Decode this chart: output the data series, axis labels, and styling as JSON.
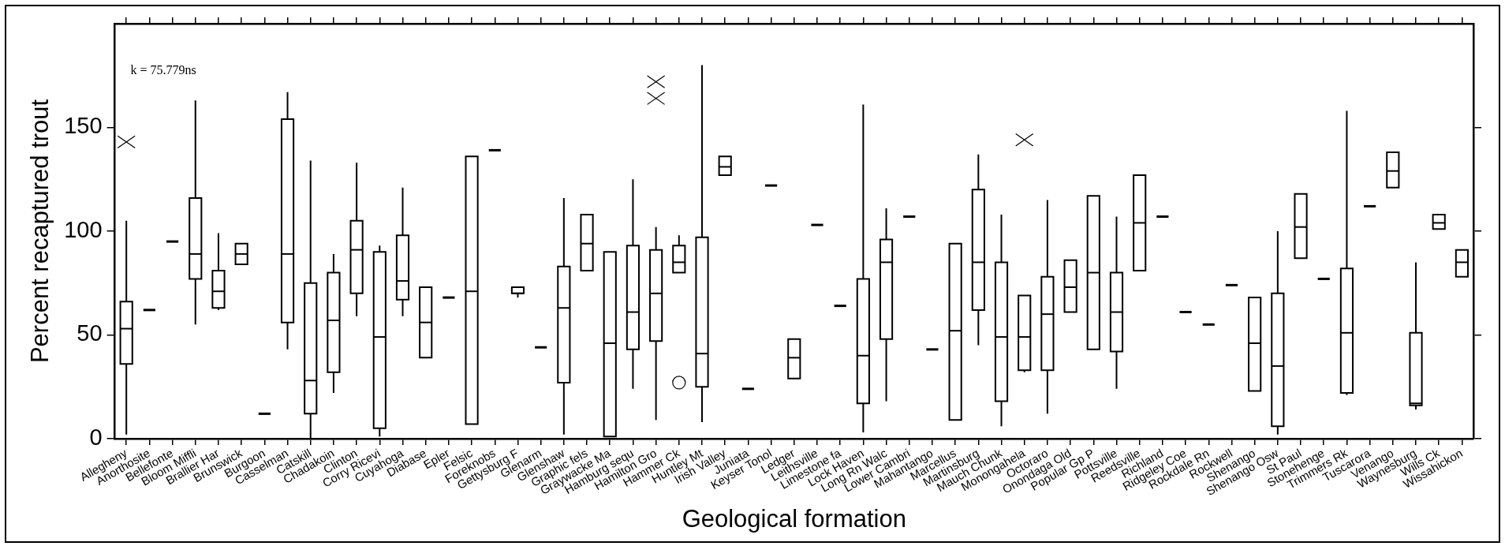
{
  "chart_data": {
    "type": "box",
    "xlabel": "Geological formation",
    "ylabel": "Percent recaptured trout",
    "annotations": [
      "k = 75.779ns"
    ],
    "color": "#000000",
    "ylim": [
      0,
      200
    ],
    "yticks": [
      0,
      50,
      100,
      150
    ],
    "grid": false,
    "legend": false,
    "categories": [
      "Allegheny",
      "Anorthosite",
      "Bellefonte",
      "Bloom Miffli",
      "Brallier Har",
      "Brunswick",
      "Burgoon",
      "Casselman",
      "Catskill",
      "Chadakoin",
      "Clinton",
      "Corry Ricevi",
      "Cuyahoga",
      "Diabase",
      "Epler",
      "Felsic",
      "Foreknobs",
      "Gettysburg F",
      "Glenarm",
      "Glenshaw",
      "Graphic fels",
      "Graywacke Ma",
      "Hamburg sequ",
      "Hamilton Gro",
      "Hammer Ck",
      "Huntley Mt",
      "Irish Valley",
      "Juniata",
      "Keyser Tonol",
      "Ledger",
      "Leithsville",
      "Limestone fa",
      "Lock Haven",
      "Long Rn Walc",
      "Lower Cambri",
      "Mahantango",
      "Marcellus",
      "Martinsburg",
      "Mauch Chunk",
      "Monongahela",
      "Octoraro",
      "Onondaga Old",
      "Popular Gp P",
      "Pottsville",
      "Reedsville",
      "Richland",
      "Ridgeley Coe",
      "Rockdale Rn",
      "Rockwell",
      "Shenango",
      "Shenango Osw",
      "St Paul",
      "Stonehenge",
      "Trimmers Rk",
      "Tuscarora",
      "Venango",
      "Waynesburg",
      "Wills Ck",
      "Wissahickon"
    ],
    "boxes": [
      {
        "low": 2,
        "q1": 36,
        "median": 53,
        "q3": 66,
        "high": 105,
        "outliers": [
          143
        ]
      },
      {
        "low": 62,
        "q1": 62,
        "median": 62,
        "q3": 62,
        "high": 62
      },
      {
        "low": 95,
        "q1": 95,
        "median": 95,
        "q3": 95,
        "high": 95
      },
      {
        "low": 55,
        "q1": 77,
        "median": 89,
        "q3": 116,
        "high": 163
      },
      {
        "low": 62,
        "q1": 63,
        "median": 71,
        "q3": 81,
        "high": 99
      },
      {
        "low": 84,
        "q1": 84,
        "median": 89,
        "q3": 94,
        "high": 94
      },
      {
        "low": 12,
        "q1": 12,
        "median": 12,
        "q3": 12,
        "high": 12
      },
      {
        "low": 43,
        "q1": 56,
        "median": 89,
        "q3": 154,
        "high": 167
      },
      {
        "low": 0,
        "q1": 12,
        "median": 28,
        "q3": 75,
        "high": 134
      },
      {
        "low": 22,
        "q1": 32,
        "median": 57,
        "q3": 80,
        "high": 89
      },
      {
        "low": 59,
        "q1": 70,
        "median": 91,
        "q3": 105,
        "high": 133
      },
      {
        "low": 1,
        "q1": 5,
        "median": 49,
        "q3": 90,
        "high": 93
      },
      {
        "low": 59,
        "q1": 67,
        "median": 76,
        "q3": 98,
        "high": 121
      },
      {
        "low": 39,
        "q1": 39,
        "median": 56,
        "q3": 73,
        "high": 73
      },
      {
        "low": 68,
        "q1": 68,
        "median": 68,
        "q3": 68,
        "high": 68
      },
      {
        "low": 7,
        "q1": 7,
        "median": 71,
        "q3": 136,
        "high": 136
      },
      {
        "low": 139,
        "q1": 139,
        "median": 139,
        "q3": 139,
        "high": 139
      },
      {
        "low": 68,
        "q1": 70,
        "median": 70,
        "q3": 73,
        "high": 73
      },
      {
        "low": 44,
        "q1": 44,
        "median": 44,
        "q3": 44,
        "high": 44
      },
      {
        "low": 2,
        "q1": 27,
        "median": 63,
        "q3": 83,
        "high": 116
      },
      {
        "low": 81,
        "q1": 81,
        "median": 94,
        "q3": 108,
        "high": 108
      },
      {
        "low": 1,
        "q1": 1,
        "median": 46,
        "q3": 90,
        "high": 90
      },
      {
        "low": 24,
        "q1": 43,
        "median": 61,
        "q3": 93,
        "high": 125
      },
      {
        "low": 9,
        "q1": 47,
        "median": 70,
        "q3": 91,
        "high": 102,
        "outliers": [
          164,
          172
        ]
      },
      {
        "low": 80,
        "q1": 80,
        "median": 85,
        "q3": 93,
        "high": 98
      },
      {
        "low": 8,
        "q1": 25,
        "median": 41,
        "q3": 97,
        "high": 180
      },
      {
        "low": 127,
        "q1": 127,
        "median": 131,
        "q3": 136,
        "high": 136
      },
      {
        "low": 24,
        "q1": 24,
        "median": 24,
        "q3": 24,
        "high": 24
      },
      {
        "low": 122,
        "q1": 122,
        "median": 122,
        "q3": 122,
        "high": 122
      },
      {
        "low": 29,
        "q1": 29,
        "median": 39,
        "q3": 48,
        "high": 48
      },
      {
        "low": 103,
        "q1": 103,
        "median": 103,
        "q3": 103,
        "high": 103
      },
      {
        "low": 64,
        "q1": 64,
        "median": 64,
        "q3": 64,
        "high": 64
      },
      {
        "low": 3,
        "q1": 17,
        "median": 40,
        "q3": 77,
        "high": 161
      },
      {
        "low": 18,
        "q1": 48,
        "median": 85,
        "q3": 96,
        "high": 111
      },
      {
        "low": 107,
        "q1": 107,
        "median": 107,
        "q3": 107,
        "high": 107
      },
      {
        "low": 43,
        "q1": 43,
        "median": 43,
        "q3": 43,
        "high": 43
      },
      {
        "low": 9,
        "q1": 9,
        "median": 52,
        "q3": 94,
        "high": 94
      },
      {
        "low": 45,
        "q1": 62,
        "median": 85,
        "q3": 120,
        "high": 137
      },
      {
        "low": 6,
        "q1": 18,
        "median": 49,
        "q3": 85,
        "high": 108
      },
      {
        "low": 32,
        "q1": 33,
        "median": 49,
        "q3": 69,
        "high": 69,
        "outliers": [
          144
        ]
      },
      {
        "low": 12,
        "q1": 33,
        "median": 60,
        "q3": 78,
        "high": 115
      },
      {
        "low": 61,
        "q1": 61,
        "median": 73,
        "q3": 86,
        "high": 86
      },
      {
        "low": 43,
        "q1": 43,
        "median": 80,
        "q3": 117,
        "high": 117
      },
      {
        "low": 24,
        "q1": 42,
        "median": 61,
        "q3": 80,
        "high": 107
      },
      {
        "low": 81,
        "q1": 81,
        "median": 104,
        "q3": 127,
        "high": 127
      },
      {
        "low": 107,
        "q1": 107,
        "median": 107,
        "q3": 107,
        "high": 107
      },
      {
        "low": 61,
        "q1": 61,
        "median": 61,
        "q3": 61,
        "high": 61
      },
      {
        "low": 55,
        "q1": 55,
        "median": 55,
        "q3": 55,
        "high": 55
      },
      {
        "low": 74,
        "q1": 74,
        "median": 74,
        "q3": 74,
        "high": 74
      },
      {
        "low": 23,
        "q1": 23,
        "median": 46,
        "q3": 68,
        "high": 68
      },
      {
        "low": 2,
        "q1": 6,
        "median": 35,
        "q3": 70,
        "high": 100
      },
      {
        "low": 87,
        "q1": 87,
        "median": 102,
        "q3": 118,
        "high": 118
      },
      {
        "low": 77,
        "q1": 77,
        "median": 77,
        "q3": 77,
        "high": 77
      },
      {
        "low": 21,
        "q1": 22,
        "median": 51,
        "q3": 82,
        "high": 158
      },
      {
        "low": 112,
        "q1": 112,
        "median": 112,
        "q3": 112,
        "high": 112
      },
      {
        "low": 121,
        "q1": 121,
        "median": 129,
        "q3": 138,
        "high": 138
      },
      {
        "low": 14,
        "q1": 16,
        "median": 17,
        "q3": 51,
        "high": 85
      },
      {
        "low": 101,
        "q1": 101,
        "median": 104,
        "q3": 108,
        "high": 108
      },
      {
        "low": 78,
        "q1": 78,
        "median": 85,
        "q3": 91,
        "high": 91
      }
    ],
    "series": [
      {
        "type": "scatter",
        "color": "#000000",
        "marker": "circle",
        "x": [
          "Hammer Ck"
        ],
        "values": [
          27
        ]
      }
    ]
  }
}
